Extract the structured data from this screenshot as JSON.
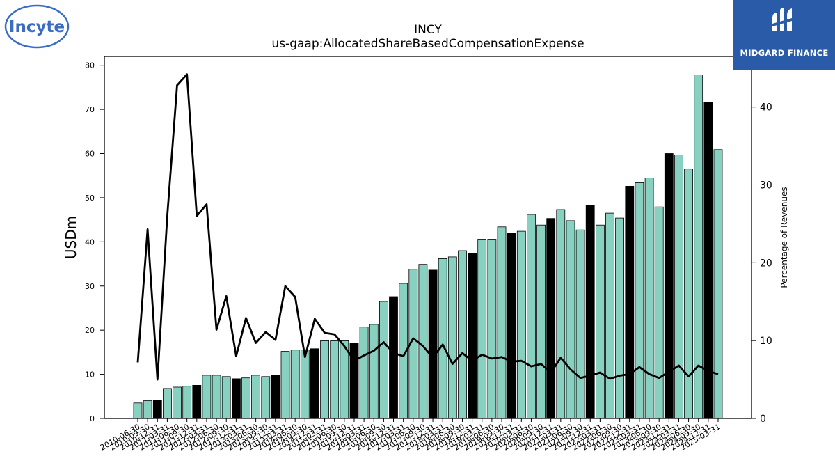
{
  "title": "INCY",
  "subtitle": "us-gaap:AllocatedShareBasedCompensationExpense",
  "logos": {
    "left": {
      "text": "Incyte",
      "color": "#3a6cc2"
    },
    "right": {
      "text": "MIDGARD FINANCE",
      "background": "#2a5ba8"
    }
  },
  "colors": {
    "bar": "#88d1c0",
    "bar_highlight": "#000000",
    "line": "#000000"
  },
  "chart_data": {
    "type": "bar",
    "ylabel": "USDm",
    "y2label": "Percentage of Revenues",
    "ylim": [
      0,
      82
    ],
    "y2lim": [
      0,
      46.5
    ],
    "yticks": [
      0,
      10,
      20,
      30,
      40,
      50,
      60,
      70,
      80
    ],
    "y2ticks": [
      0,
      10,
      20,
      30,
      40
    ],
    "grid": false,
    "categories": [
      "2010-06-30",
      "2010-09-30",
      "2010-12-31",
      "2011-03-31",
      "2011-06-30",
      "2011-09-30",
      "2011-12-31",
      "2012-03-31",
      "2012-06-30",
      "2012-09-30",
      "2012-12-31",
      "2013-03-31",
      "2013-06-30",
      "2013-09-30",
      "2013-12-31",
      "2014-03-31",
      "2014-06-30",
      "2014-09-30",
      "2014-12-31",
      "2015-03-31",
      "2015-06-30",
      "2015-09-30",
      "2015-12-31",
      "2016-03-31",
      "2016-06-30",
      "2016-09-30",
      "2016-12-31",
      "2017-03-31",
      "2017-06-30",
      "2017-09-30",
      "2017-12-31",
      "2018-03-31",
      "2018-06-30",
      "2018-09-30",
      "2018-12-31",
      "2019-03-31",
      "2019-06-30",
      "2019-09-30",
      "2019-12-31",
      "2020-03-31",
      "2020-06-30",
      "2020-09-30",
      "2020-12-31",
      "2021-03-31",
      "2021-06-30",
      "2021-09-30",
      "2021-12-31",
      "2022-03-31",
      "2022-06-30",
      "2022-09-30",
      "2022-12-31",
      "2023-03-31",
      "2023-06-30",
      "2023-09-30",
      "2023-12-31",
      "2024-03-31",
      "2024-06-30",
      "2024-09-30",
      "2024-12-31",
      "2025-03-31"
    ],
    "series": [
      {
        "kind": "bar",
        "values": [
          3.5,
          4.0,
          4.2,
          6.8,
          7.1,
          7.3,
          7.5,
          9.8,
          9.8,
          9.5,
          9.0,
          9.2,
          9.8,
          9.5,
          9.8,
          15.2,
          15.5,
          15.5,
          15.8,
          17.6,
          17.6,
          17.6,
          17.0,
          20.7,
          21.3,
          26.5,
          27.6,
          30.6,
          33.8,
          34.9,
          33.6,
          36.2,
          36.6,
          38.0,
          37.4,
          40.6,
          40.6,
          43.4,
          42.0,
          42.4,
          46.2,
          43.8,
          45.3,
          47.3,
          44.8,
          42.7,
          48.2,
          43.8,
          46.5,
          45.4,
          52.6,
          53.4,
          54.5,
          47.9,
          60.0,
          59.7,
          56.5,
          77.8,
          71.6,
          60.9
        ],
        "highlight": [
          false,
          false,
          true,
          false,
          false,
          false,
          true,
          false,
          false,
          false,
          true,
          false,
          false,
          false,
          true,
          false,
          false,
          false,
          true,
          false,
          false,
          false,
          true,
          false,
          false,
          false,
          true,
          false,
          false,
          false,
          true,
          false,
          false,
          false,
          true,
          false,
          false,
          false,
          true,
          false,
          false,
          false,
          true,
          false,
          false,
          false,
          true,
          false,
          false,
          false,
          true,
          false,
          false,
          false,
          true,
          false,
          false,
          false,
          true,
          false
        ]
      },
      {
        "kind": "line",
        "axis": "right",
        "values": [
          7.2,
          24.3,
          5.0,
          26.0,
          42.8,
          44.2,
          26.0,
          27.5,
          11.4,
          15.7,
          8.0,
          12.9,
          9.7,
          11.1,
          10.1,
          17.0,
          15.6,
          7.9,
          12.8,
          11.0,
          10.8,
          9.3,
          7.4,
          8.1,
          8.7,
          9.8,
          8.4,
          8.0,
          10.3,
          9.3,
          7.8,
          9.5,
          7.0,
          8.4,
          7.4,
          8.2,
          7.7,
          7.9,
          7.3,
          7.4,
          6.7,
          7.0,
          5.9,
          7.8,
          6.3,
          5.2,
          5.5,
          5.9,
          5.1,
          5.5,
          5.7,
          6.6,
          5.7,
          5.2,
          6.0,
          6.8,
          5.4,
          6.8,
          6.1,
          5.7
        ]
      }
    ]
  }
}
